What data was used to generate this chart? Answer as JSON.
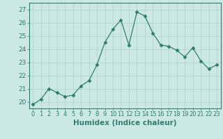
{
  "x": [
    0,
    1,
    2,
    3,
    4,
    5,
    6,
    7,
    8,
    9,
    10,
    11,
    12,
    13,
    14,
    15,
    16,
    17,
    18,
    19,
    20,
    21,
    22,
    23
  ],
  "y": [
    19.8,
    20.2,
    21.0,
    20.7,
    20.4,
    20.5,
    21.2,
    21.6,
    22.8,
    24.5,
    25.5,
    26.2,
    24.3,
    26.8,
    26.5,
    25.2,
    24.3,
    24.2,
    23.9,
    23.4,
    24.1,
    23.1,
    22.5,
    22.8
  ],
  "xlim": [
    -0.5,
    23.5
  ],
  "ylim": [
    19.5,
    27.5
  ],
  "yticks": [
    20,
    21,
    22,
    23,
    24,
    25,
    26,
    27
  ],
  "xticks": [
    0,
    1,
    2,
    3,
    4,
    5,
    6,
    7,
    8,
    9,
    10,
    11,
    12,
    13,
    14,
    15,
    16,
    17,
    18,
    19,
    20,
    21,
    22,
    23
  ],
  "xlabel": "Humidex (Indice chaleur)",
  "line_color": "#2e7d6e",
  "marker": "D",
  "marker_size": 2.5,
  "bg_color": "#cce8e4",
  "grid_color": "#b0d4cf",
  "axes_color": "#2e7d6e",
  "tick_color": "#2e7d6e",
  "label_color": "#2e7d6e",
  "xlabel_fontsize": 7.5,
  "ytick_fontsize": 6.5,
  "xtick_fontsize": 6.0
}
